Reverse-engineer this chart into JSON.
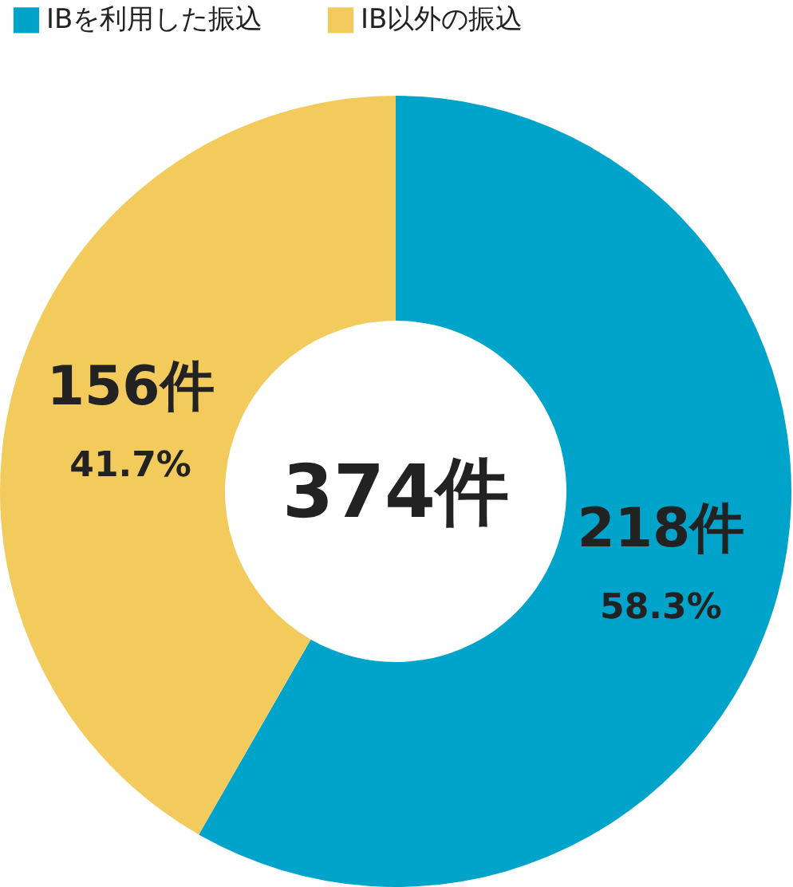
{
  "chart_data": {
    "type": "donut",
    "categories": [
      "IBを利用した振込",
      "IB以外の振込"
    ],
    "values": [
      218,
      156
    ],
    "colors": [
      "#00a3c9",
      "#f3cb5c"
    ],
    "value_labels": [
      "218件",
      "156件"
    ],
    "annotations": [
      "374件",
      {
        "text": "58.3%",
        "x": "IBを利用した振込"
      },
      {
        "text": "41.7%",
        "x": "IB以外の振込"
      }
    ],
    "legend": "top left"
  }
}
